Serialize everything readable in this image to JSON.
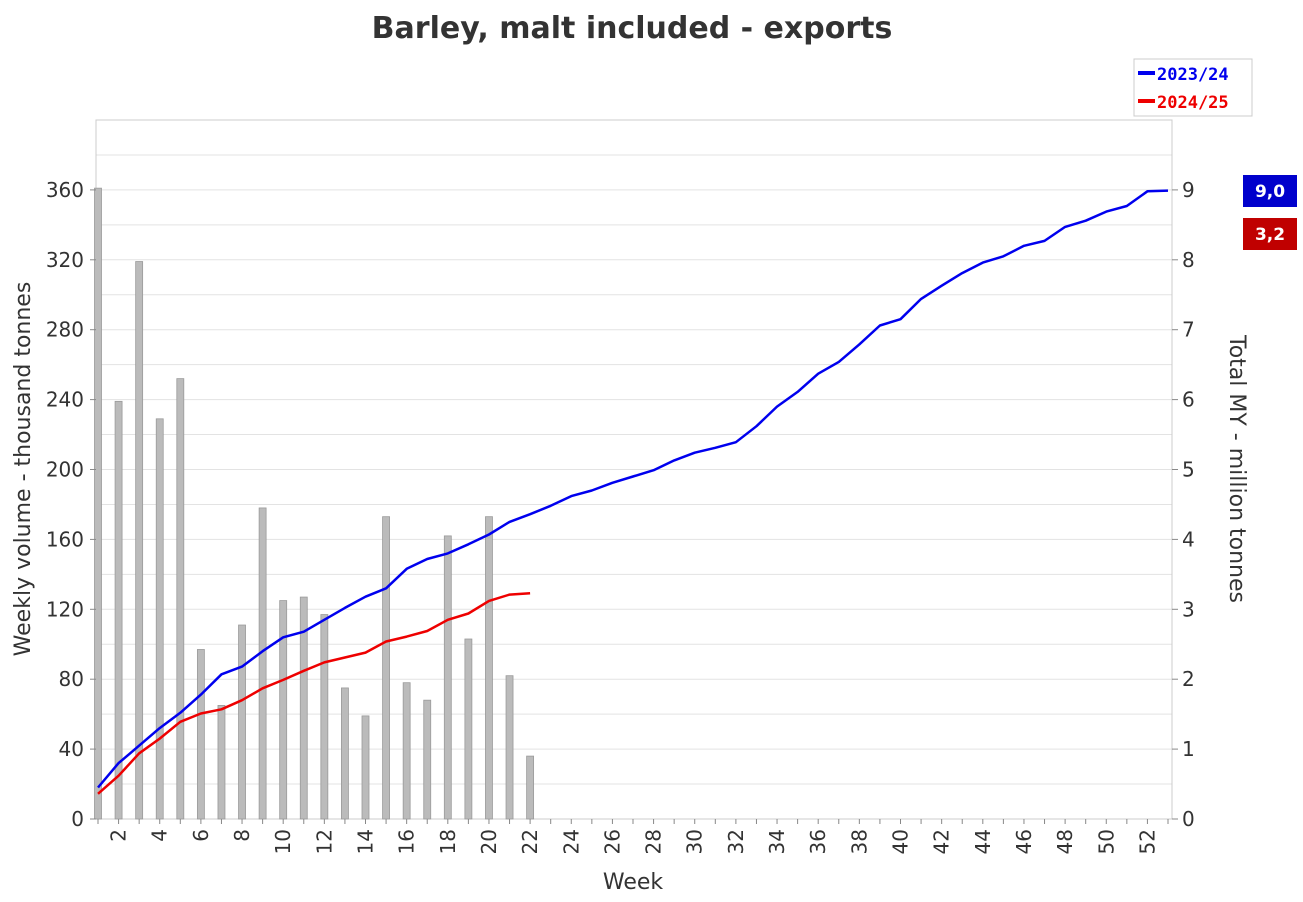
{
  "chart_data": {
    "type": "bar+line",
    "title": "Barley, malt included - exports",
    "xlabel": "Week",
    "ylabel_left": "Weekly volume - thousand tonnes",
    "ylabel_right": "Total MY - million tonnes",
    "ylim_left": [
      0,
      400
    ],
    "ylim_right": [
      0,
      10
    ],
    "xlim": [
      1,
      53
    ],
    "left_ticks": [
      0,
      40,
      80,
      120,
      160,
      200,
      240,
      280,
      320,
      360
    ],
    "right_ticks": [
      0,
      1,
      2,
      3,
      4,
      5,
      6,
      7,
      8,
      9
    ],
    "x_ticks": [
      2,
      4,
      6,
      8,
      10,
      12,
      14,
      16,
      18,
      20,
      22,
      24,
      26,
      28,
      30,
      32,
      34,
      36,
      38,
      40,
      42,
      44,
      46,
      48,
      50,
      52
    ],
    "grid": true,
    "legend_position": "top-right",
    "bars": {
      "series": "weekly volume 2024/25",
      "weeks": [
        1,
        2,
        3,
        4,
        5,
        6,
        7,
        8,
        9,
        10,
        11,
        12,
        13,
        14,
        15,
        16,
        17,
        18,
        19,
        20,
        21,
        22
      ],
      "values": [
        361,
        239,
        319,
        229,
        252,
        97,
        65,
        111,
        178,
        125,
        127,
        117,
        75,
        59,
        173,
        78,
        68,
        162,
        103,
        173,
        82,
        36
      ],
      "color": "#bbbbbb"
    },
    "series": [
      {
        "name": "2023/24",
        "color": "#0000ee",
        "weeks": [
          1,
          2,
          3,
          4,
          5,
          6,
          7,
          8,
          9,
          10,
          11,
          12,
          13,
          14,
          15,
          16,
          17,
          18,
          19,
          20,
          21,
          22,
          23,
          24,
          25,
          26,
          27,
          28,
          29,
          30,
          31,
          32,
          33,
          34,
          35,
          36,
          37,
          38,
          39,
          40,
          41,
          42,
          43,
          44,
          45,
          46,
          47,
          48,
          49,
          50,
          51,
          52,
          53
        ],
        "values": [
          0.45,
          0.8,
          1.05,
          1.3,
          1.52,
          1.78,
          2.07,
          2.18,
          2.4,
          2.6,
          2.68,
          2.85,
          3.02,
          3.18,
          3.3,
          3.58,
          3.72,
          3.8,
          3.93,
          4.07,
          4.25,
          4.36,
          4.48,
          4.62,
          4.7,
          4.81,
          4.9,
          4.99,
          5.13,
          5.24,
          5.31,
          5.39,
          5.62,
          5.9,
          6.11,
          6.37,
          6.54,
          6.79,
          7.06,
          7.15,
          7.44,
          7.63,
          7.81,
          7.96,
          8.05,
          8.2,
          8.27,
          8.47,
          8.56,
          8.69,
          8.77,
          8.98,
          8.99
        ]
      },
      {
        "name": "2024/25",
        "color": "#ee0000",
        "weeks": [
          1,
          2,
          3,
          4,
          5,
          6,
          7,
          8,
          9,
          10,
          11,
          12,
          13,
          14,
          15,
          16,
          17,
          18,
          19,
          20,
          21,
          22
        ],
        "values": [
          0.36,
          0.62,
          0.94,
          1.15,
          1.39,
          1.51,
          1.57,
          1.7,
          1.87,
          1.99,
          2.12,
          2.24,
          2.31,
          2.38,
          2.54,
          2.61,
          2.69,
          2.85,
          2.94,
          3.12,
          3.21,
          3.23
        ]
      }
    ]
  },
  "legend": [
    {
      "label": "2023/24",
      "color": "#0000ee"
    },
    {
      "label": "2024/25",
      "color": "#ee0000"
    }
  ],
  "badges": [
    {
      "label": "9,0",
      "color": "#0000cc"
    },
    {
      "label": "3,2",
      "color": "#c00000"
    }
  ]
}
